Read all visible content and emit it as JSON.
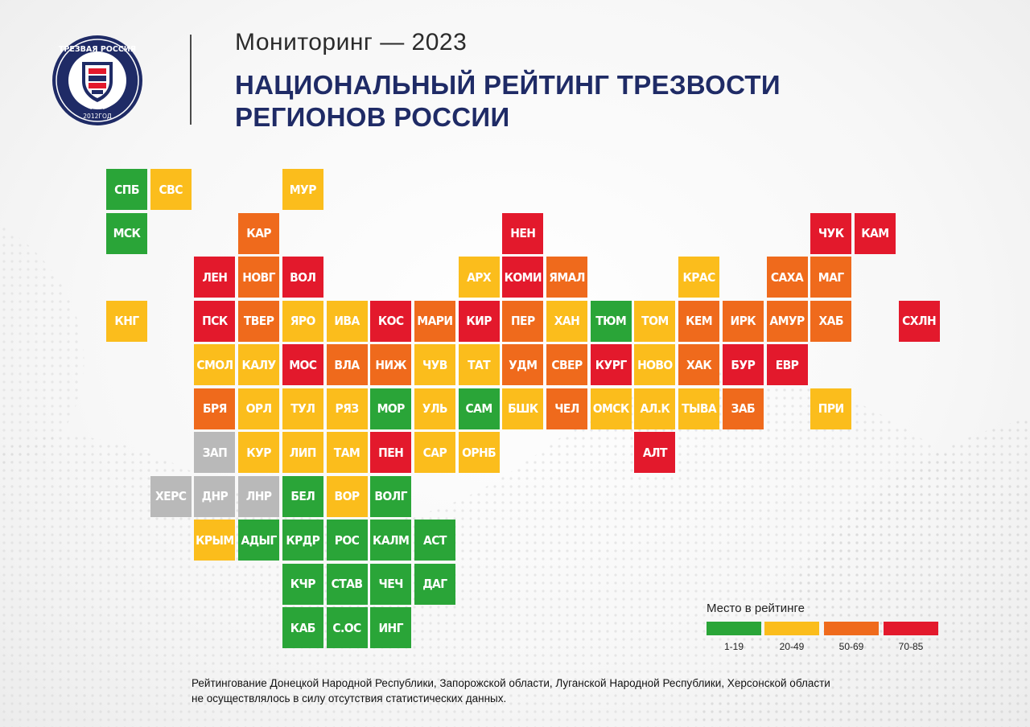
{
  "header": {
    "subtitle": "Мониторинг — 2023",
    "title_line1": "НАЦИОНАЛЬНЫЙ РЕЙТИНГ ТРЕЗВОСТИ",
    "title_line2": "РЕГИОНОВ РОССИИ"
  },
  "logo": {
    "text_arc": "ТРЕЗВАЯ РОССИЯ",
    "text_year": "2012ГОД",
    "icon": "shield-emblem-icon"
  },
  "colors": {
    "green": "#2aa538",
    "yellow": "#fbbd1c",
    "orange": "#ef6a1c",
    "red": "#e3192c",
    "gray": "#b9b9b9",
    "title": "#1f2b66"
  },
  "chart_data": {
    "type": "heatmap",
    "title": "НАЦИОНАЛЬНЫЙ РЕЙТИНГ ТРЕЗВОСТИ РЕГИОНОВ РОССИИ",
    "layout": "tile-grid map, rows top to bottom, columns left to right",
    "categories": [
      {
        "key": "green",
        "label": "1-19",
        "range": [
          1,
          19
        ]
      },
      {
        "key": "yellow",
        "label": "20-49",
        "range": [
          20,
          49
        ]
      },
      {
        "key": "orange",
        "label": "50-69",
        "range": [
          50,
          69
        ]
      },
      {
        "key": "red",
        "label": "70-85",
        "range": [
          70,
          85
        ]
      },
      {
        "key": "gray",
        "label": "",
        "range": null
      }
    ],
    "tiles": [
      {
        "label": "СПБ",
        "row": 0,
        "col": 0,
        "cat": "green"
      },
      {
        "label": "СВС",
        "row": 0,
        "col": 1,
        "cat": "yellow"
      },
      {
        "label": "МУР",
        "row": 0,
        "col": 4,
        "cat": "yellow"
      },
      {
        "label": "МСК",
        "row": 1,
        "col": 0,
        "cat": "green"
      },
      {
        "label": "КАР",
        "row": 1,
        "col": 3,
        "cat": "orange"
      },
      {
        "label": "НЕН",
        "row": 1,
        "col": 9,
        "cat": "red"
      },
      {
        "label": "ЧУК",
        "row": 1,
        "col": 16,
        "cat": "red"
      },
      {
        "label": "КАМ",
        "row": 1,
        "col": 17,
        "cat": "red"
      },
      {
        "label": "ЛЕН",
        "row": 2,
        "col": 2,
        "cat": "red"
      },
      {
        "label": "НОВГ",
        "row": 2,
        "col": 3,
        "cat": "orange"
      },
      {
        "label": "ВОЛ",
        "row": 2,
        "col": 4,
        "cat": "red"
      },
      {
        "label": "АРХ",
        "row": 2,
        "col": 8,
        "cat": "yellow"
      },
      {
        "label": "КОМИ",
        "row": 2,
        "col": 9,
        "cat": "red"
      },
      {
        "label": "ЯМАЛ",
        "row": 2,
        "col": 10,
        "cat": "orange"
      },
      {
        "label": "КРАС",
        "row": 2,
        "col": 13,
        "cat": "yellow"
      },
      {
        "label": "САХА",
        "row": 2,
        "col": 15,
        "cat": "orange"
      },
      {
        "label": "МАГ",
        "row": 2,
        "col": 16,
        "cat": "orange"
      },
      {
        "label": "КНГ",
        "row": 3,
        "col": 0,
        "cat": "yellow"
      },
      {
        "label": "ПСК",
        "row": 3,
        "col": 2,
        "cat": "red"
      },
      {
        "label": "ТВЕР",
        "row": 3,
        "col": 3,
        "cat": "orange"
      },
      {
        "label": "ЯРО",
        "row": 3,
        "col": 4,
        "cat": "yellow"
      },
      {
        "label": "ИВА",
        "row": 3,
        "col": 5,
        "cat": "yellow"
      },
      {
        "label": "КОС",
        "row": 3,
        "col": 6,
        "cat": "red"
      },
      {
        "label": "МАРИ",
        "row": 3,
        "col": 7,
        "cat": "orange"
      },
      {
        "label": "КИР",
        "row": 3,
        "col": 8,
        "cat": "red"
      },
      {
        "label": "ПЕР",
        "row": 3,
        "col": 9,
        "cat": "orange"
      },
      {
        "label": "ХАН",
        "row": 3,
        "col": 10,
        "cat": "yellow"
      },
      {
        "label": "ТЮМ",
        "row": 3,
        "col": 11,
        "cat": "green"
      },
      {
        "label": "ТОМ",
        "row": 3,
        "col": 12,
        "cat": "yellow"
      },
      {
        "label": "КЕМ",
        "row": 3,
        "col": 13,
        "cat": "orange"
      },
      {
        "label": "ИРК",
        "row": 3,
        "col": 14,
        "cat": "orange"
      },
      {
        "label": "АМУР",
        "row": 3,
        "col": 15,
        "cat": "orange"
      },
      {
        "label": "ХАБ",
        "row": 3,
        "col": 16,
        "cat": "orange"
      },
      {
        "label": "СХЛН",
        "row": 3,
        "col": 18,
        "cat": "red"
      },
      {
        "label": "СМОЛ",
        "row": 4,
        "col": 2,
        "cat": "yellow"
      },
      {
        "label": "КАЛУ",
        "row": 4,
        "col": 3,
        "cat": "yellow"
      },
      {
        "label": "МОС",
        "row": 4,
        "col": 4,
        "cat": "red"
      },
      {
        "label": "ВЛА",
        "row": 4,
        "col": 5,
        "cat": "orange"
      },
      {
        "label": "НИЖ",
        "row": 4,
        "col": 6,
        "cat": "orange"
      },
      {
        "label": "ЧУВ",
        "row": 4,
        "col": 7,
        "cat": "yellow"
      },
      {
        "label": "ТАТ",
        "row": 4,
        "col": 8,
        "cat": "yellow"
      },
      {
        "label": "УДМ",
        "row": 4,
        "col": 9,
        "cat": "orange"
      },
      {
        "label": "СВЕР",
        "row": 4,
        "col": 10,
        "cat": "orange"
      },
      {
        "label": "КУРГ",
        "row": 4,
        "col": 11,
        "cat": "red"
      },
      {
        "label": "НОВО",
        "row": 4,
        "col": 12,
        "cat": "yellow"
      },
      {
        "label": "ХАК",
        "row": 4,
        "col": 13,
        "cat": "orange"
      },
      {
        "label": "БУР",
        "row": 4,
        "col": 14,
        "cat": "red"
      },
      {
        "label": "ЕВР",
        "row": 4,
        "col": 15,
        "cat": "red"
      },
      {
        "label": "БРЯ",
        "row": 5,
        "col": 2,
        "cat": "orange"
      },
      {
        "label": "ОРЛ",
        "row": 5,
        "col": 3,
        "cat": "yellow"
      },
      {
        "label": "ТУЛ",
        "row": 5,
        "col": 4,
        "cat": "yellow"
      },
      {
        "label": "РЯЗ",
        "row": 5,
        "col": 5,
        "cat": "yellow"
      },
      {
        "label": "МОР",
        "row": 5,
        "col": 6,
        "cat": "green"
      },
      {
        "label": "УЛЬ",
        "row": 5,
        "col": 7,
        "cat": "yellow"
      },
      {
        "label": "САМ",
        "row": 5,
        "col": 8,
        "cat": "green"
      },
      {
        "label": "БШК",
        "row": 5,
        "col": 9,
        "cat": "yellow"
      },
      {
        "label": "ЧЕЛ",
        "row": 5,
        "col": 10,
        "cat": "orange"
      },
      {
        "label": "ОМСК",
        "row": 5,
        "col": 11,
        "cat": "yellow"
      },
      {
        "label": "АЛ.К",
        "row": 5,
        "col": 12,
        "cat": "yellow"
      },
      {
        "label": "ТЫВА",
        "row": 5,
        "col": 13,
        "cat": "yellow"
      },
      {
        "label": "ЗАБ",
        "row": 5,
        "col": 14,
        "cat": "orange"
      },
      {
        "label": "ПРИ",
        "row": 5,
        "col": 16,
        "cat": "yellow"
      },
      {
        "label": "ЗАП",
        "row": 6,
        "col": 2,
        "cat": "gray"
      },
      {
        "label": "КУР",
        "row": 6,
        "col": 3,
        "cat": "yellow"
      },
      {
        "label": "ЛИП",
        "row": 6,
        "col": 4,
        "cat": "yellow"
      },
      {
        "label": "ТАМ",
        "row": 6,
        "col": 5,
        "cat": "yellow"
      },
      {
        "label": "ПЕН",
        "row": 6,
        "col": 6,
        "cat": "red"
      },
      {
        "label": "САР",
        "row": 6,
        "col": 7,
        "cat": "yellow"
      },
      {
        "label": "ОРНБ",
        "row": 6,
        "col": 8,
        "cat": "yellow"
      },
      {
        "label": "АЛТ",
        "row": 6,
        "col": 12,
        "cat": "red"
      },
      {
        "label": "ХЕРС",
        "row": 7,
        "col": 1,
        "cat": "gray"
      },
      {
        "label": "ДНР",
        "row": 7,
        "col": 2,
        "cat": "gray"
      },
      {
        "label": "ЛНР",
        "row": 7,
        "col": 3,
        "cat": "gray"
      },
      {
        "label": "БЕЛ",
        "row": 7,
        "col": 4,
        "cat": "green"
      },
      {
        "label": "ВОР",
        "row": 7,
        "col": 5,
        "cat": "yellow"
      },
      {
        "label": "ВОЛГ",
        "row": 7,
        "col": 6,
        "cat": "green"
      },
      {
        "label": "КРЫМ",
        "row": 8,
        "col": 2,
        "cat": "yellow"
      },
      {
        "label": "АДЫГ",
        "row": 8,
        "col": 3,
        "cat": "green"
      },
      {
        "label": "КРДР",
        "row": 8,
        "col": 4,
        "cat": "green"
      },
      {
        "label": "РОС",
        "row": 8,
        "col": 5,
        "cat": "green"
      },
      {
        "label": "КАЛМ",
        "row": 8,
        "col": 6,
        "cat": "green"
      },
      {
        "label": "АСТ",
        "row": 8,
        "col": 7,
        "cat": "green"
      },
      {
        "label": "КЧР",
        "row": 9,
        "col": 4,
        "cat": "green"
      },
      {
        "label": "СТАВ",
        "row": 9,
        "col": 5,
        "cat": "green"
      },
      {
        "label": "ЧЕЧ",
        "row": 9,
        "col": 6,
        "cat": "green"
      },
      {
        "label": "ДАГ",
        "row": 9,
        "col": 7,
        "cat": "green"
      },
      {
        "label": "КАБ",
        "row": 10,
        "col": 4,
        "cat": "green"
      },
      {
        "label": "С.ОС",
        "row": 10,
        "col": 5,
        "cat": "green"
      },
      {
        "label": "ИНГ",
        "row": 10,
        "col": 6,
        "cat": "green"
      }
    ]
  },
  "legend": {
    "title": "Место в рейтинге",
    "items": [
      {
        "label": "1-19",
        "color": "#2aa538"
      },
      {
        "label": "20-49",
        "color": "#fbbd1c"
      },
      {
        "label": "50-69",
        "color": "#ef6a1c"
      },
      {
        "label": "70-85",
        "color": "#e3192c"
      }
    ]
  },
  "footnote": {
    "line1": "Рейтингование Донецкой Народной Республики, Запорожской области, Луганской Народной Республики, Херсонской области",
    "line2": "не осуществлялось в силу отсутствия статистических данных."
  }
}
